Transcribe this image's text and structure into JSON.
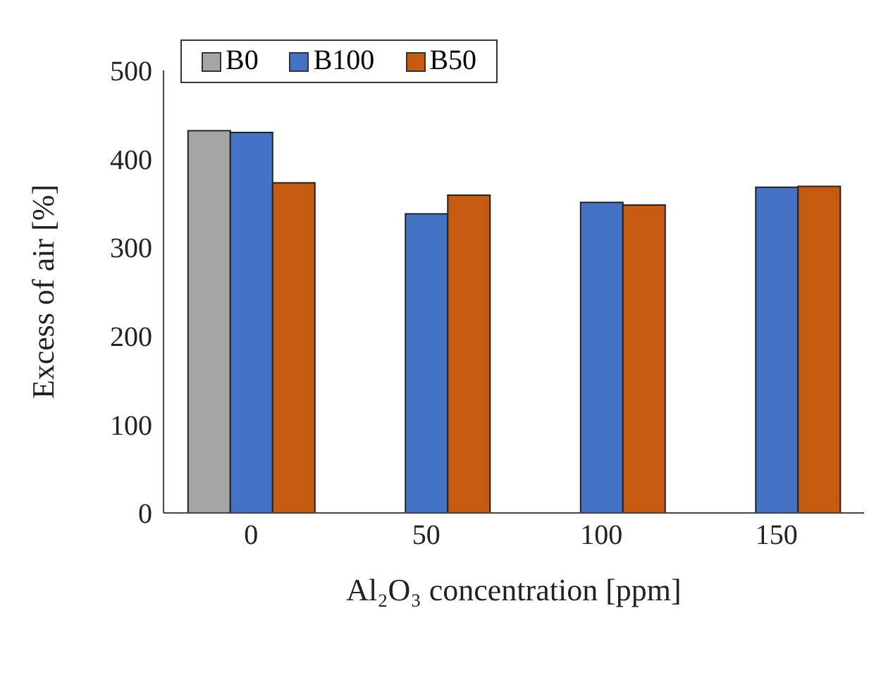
{
  "chart_data": {
    "type": "bar",
    "categories": [
      "0",
      "50",
      "100",
      "150"
    ],
    "series": [
      {
        "name": "B0",
        "color": "#a5a5a5",
        "values": [
          432,
          null,
          null,
          null
        ]
      },
      {
        "name": "B100",
        "color": "#4472c4",
        "values": [
          430,
          338,
          351,
          368
        ]
      },
      {
        "name": "B50",
        "color": "#c55a11",
        "values": [
          373,
          359,
          348,
          369
        ]
      }
    ],
    "xlabel": "Al₂O₃ concentration [ppm]",
    "ylabel": "Excess of air [%]",
    "ylim": [
      0,
      500
    ],
    "yticks": [
      0,
      100,
      200,
      300,
      400,
      500
    ],
    "legend": "top left"
  }
}
